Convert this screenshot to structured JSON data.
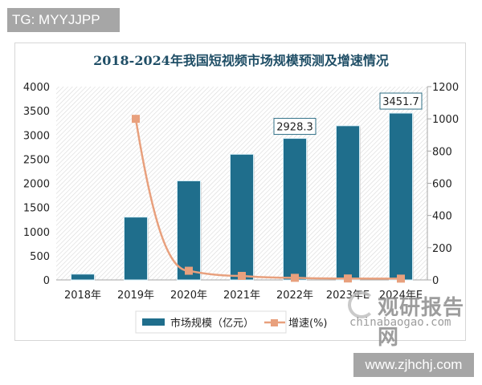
{
  "watermarks": {
    "top_tag": "TG: MYYJJPP",
    "bottom_tag": "www.zjhchj.com",
    "brand_cn": "观研报告网",
    "brand_url": "chinabaogao.com"
  },
  "colors": {
    "bar": "#1f6e8c",
    "line": "#e8a07d",
    "title": "#1f4e66"
  },
  "chart_data": {
    "type": "bar+line",
    "title": "2018-2024年我国短视频市场规模预测及增速情况",
    "categories": [
      "2018年",
      "2019年",
      "2020年",
      "2021年",
      "2022年",
      "2023年E",
      "2024年E"
    ],
    "series": [
      {
        "name": "市场规模（亿元）",
        "type": "bar",
        "axis": "left",
        "values": [
          120,
          1300,
          2050,
          2600,
          2928.3,
          3190,
          3451.7
        ]
      },
      {
        "name": "增速(%)",
        "type": "line",
        "axis": "right",
        "values": [
          null,
          1000,
          57,
          25,
          13,
          9,
          8
        ]
      }
    ],
    "data_labels": [
      {
        "category": "2022年",
        "value": "2928.3"
      },
      {
        "category": "2024年E",
        "value": "3451.7"
      }
    ],
    "left_axis": {
      "ylim": [
        0,
        4000
      ],
      "ticks": [
        "0",
        "500",
        "1000",
        "1500",
        "2000",
        "2500",
        "3000",
        "3500",
        "4000"
      ]
    },
    "right_axis": {
      "ylim": [
        0,
        1200
      ],
      "ticks": [
        "0",
        "200",
        "400",
        "600",
        "800",
        "1000",
        "1200"
      ]
    },
    "xlabel": "",
    "ylabel": "",
    "grid": false,
    "legend_position": "bottom"
  }
}
